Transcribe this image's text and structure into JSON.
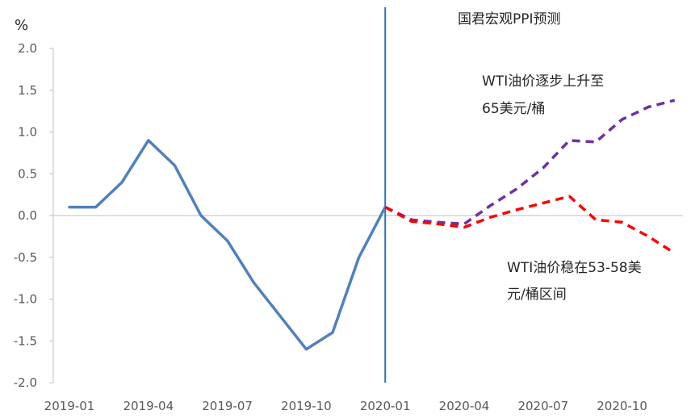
{
  "chart_data": {
    "type": "line",
    "title": "",
    "xlabel": "",
    "ylabel": "%",
    "ylim": [
      -2.0,
      2.0
    ],
    "yticks": [
      "2.0",
      "1.5",
      "1.0",
      "0.5",
      "0.0",
      "-0.5",
      "-1.0",
      "-1.5",
      "-2.0"
    ],
    "x": [
      "2019-01",
      "2019-02",
      "2019-03",
      "2019-04",
      "2019-05",
      "2019-06",
      "2019-07",
      "2019-08",
      "2019-09",
      "2019-10",
      "2019-11",
      "2019-12",
      "2020-01",
      "2020-02",
      "2020-03",
      "2020-04",
      "2020-05",
      "2020-06",
      "2020-07",
      "2020-08",
      "2020-09",
      "2020-10",
      "2020-11",
      "2020-12"
    ],
    "xticks": [
      "2019-01",
      "2019-04",
      "2019-07",
      "2019-10",
      "2020-01",
      "2020-04",
      "2020-07",
      "2020-10"
    ],
    "grid": false,
    "divider_at": "2020-01",
    "series": [
      {
        "name": "",
        "style": "solid",
        "color": "#4F81BD",
        "points": [
          [
            "2019-01",
            0.1
          ],
          [
            "2019-02",
            0.1
          ],
          [
            "2019-03",
            0.4
          ],
          [
            "2019-04",
            0.9
          ],
          [
            "2019-05",
            0.6
          ],
          [
            "2019-06",
            0.0
          ],
          [
            "2019-07",
            -0.3
          ],
          [
            "2019-08",
            -0.8
          ],
          [
            "2019-09",
            -1.2
          ],
          [
            "2019-10",
            -1.6
          ],
          [
            "2019-11",
            -1.4
          ],
          [
            "2019-12",
            -0.5
          ],
          [
            "2020-01",
            0.1
          ]
        ]
      },
      {
        "name": "",
        "style": "dashed",
        "color": "#7030A0",
        "points": [
          [
            "2020-01",
            0.1
          ],
          [
            "2020-02",
            -0.05
          ],
          [
            "2020-03",
            -0.08
          ],
          [
            "2020-04",
            -0.1
          ],
          [
            "2020-05",
            0.12
          ],
          [
            "2020-06",
            0.32
          ],
          [
            "2020-07",
            0.57
          ],
          [
            "2020-08",
            0.9
          ],
          [
            "2020-09",
            0.88
          ],
          [
            "2020-10",
            1.15
          ],
          [
            "2020-11",
            1.3
          ],
          [
            "2020-12",
            1.38
          ]
        ]
      },
      {
        "name": "",
        "style": "dashed",
        "color": "#FF0000",
        "points": [
          [
            "2020-01",
            0.1
          ],
          [
            "2020-02",
            -0.07
          ],
          [
            "2020-03",
            -0.1
          ],
          [
            "2020-04",
            -0.14
          ],
          [
            "2020-05",
            -0.02
          ],
          [
            "2020-06",
            0.07
          ],
          [
            "2020-07",
            0.15
          ],
          [
            "2020-08",
            0.23
          ],
          [
            "2020-09",
            -0.05
          ],
          [
            "2020-10",
            -0.08
          ],
          [
            "2020-11",
            -0.25
          ],
          [
            "2020-12",
            -0.45
          ]
        ]
      }
    ],
    "annotations": [
      {
        "id": "forecast-label",
        "lines": [
          "国君宏观PPI预测"
        ]
      },
      {
        "id": "purple-label",
        "lines": [
          "WTI油价逐步上升至",
          "65美元/桶"
        ]
      },
      {
        "id": "red-label",
        "lines": [
          "WTI油价稳在53-58美",
          "元/桶区间"
        ]
      }
    ]
  }
}
